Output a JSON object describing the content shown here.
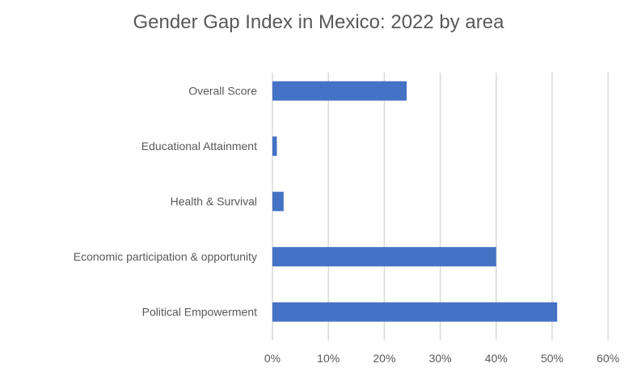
{
  "chart_data": {
    "type": "bar",
    "orientation": "horizontal",
    "title": "Gender Gap Index in Mexico: 2022 by area",
    "categories": [
      "Overall Score",
      "Educational Attainment",
      "Health & Survival",
      "Economic participation & opportunity",
      "Political Empowerment"
    ],
    "values": [
      24.0,
      0.8,
      2.0,
      40.0,
      50.9
    ],
    "unit": "%",
    "xlabel": "",
    "ylabel": "",
    "xlim": [
      0,
      60
    ],
    "xticks": [
      "0%",
      "10%",
      "20%",
      "30%",
      "40%",
      "50%",
      "60%"
    ],
    "grid": true,
    "legend": "none",
    "bar_color": "#4472C4"
  }
}
